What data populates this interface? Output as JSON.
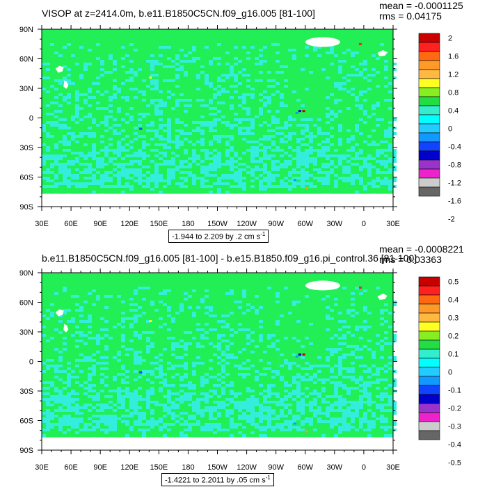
{
  "chart_data": [
    {
      "type": "heatmap",
      "title": "VISOP at z=2414.0m, b.e11.B1850C5CN.f09_g16.005 [81-100]",
      "stats": {
        "mean": "mean = -0.0001125",
        "rms": "rms = 0.04175"
      },
      "range_note": "-1.944 to 2.209 by .2 cm s",
      "range_unit_exp": "-1",
      "x_tick_labels": [
        "30E",
        "60E",
        "90E",
        "120E",
        "150E",
        "180",
        "150W",
        "120W",
        "90W",
        "60W",
        "30W",
        "0",
        "30E"
      ],
      "y_tick_labels": [
        "90N",
        "60N",
        "30N",
        "0",
        "30S",
        "60S",
        "90S"
      ],
      "xlim": [
        30,
        390
      ],
      "ylim": [
        -90,
        90
      ],
      "colorbar_labels": [
        "2",
        "1.6",
        "1.2",
        "0.8",
        "0.4",
        "0",
        "-0.4",
        "-0.8",
        "-1.2",
        "-1.6",
        "-2"
      ]
    },
    {
      "type": "heatmap",
      "title": "b.e11.B1850C5CN.f09_g16.005 [81-100] - b.e15.B1850.f09_g16.pi_control.36 [81-100]",
      "stats": {
        "mean": "mean = -0.0008221",
        "rms": "rms = 0.03363"
      },
      "range_note": "-1.4221 to 2.2011 by .05 cm s",
      "range_unit_exp": "-1",
      "x_tick_labels": [
        "30E",
        "60E",
        "90E",
        "120E",
        "150E",
        "180",
        "150W",
        "120W",
        "90W",
        "60W",
        "30W",
        "0",
        "30E"
      ],
      "y_tick_labels": [
        "90N",
        "60N",
        "30N",
        "0",
        "30S",
        "60S",
        "90S"
      ],
      "xlim": [
        30,
        390
      ],
      "ylim": [
        -90,
        90
      ],
      "colorbar_labels": [
        "0.5",
        "0.4",
        "0.3",
        "0.2",
        "0.1",
        "0",
        "-0.1",
        "-0.2",
        "-0.3",
        "-0.4",
        "-0.5"
      ]
    }
  ],
  "colors": {
    "base_green": "#22ee55",
    "cyan": "#33eedd",
    "colorbar": [
      "#c80000",
      "#ff2020",
      "#ff6a10",
      "#ff9a28",
      "#ffb840",
      "#ffff22",
      "#88ee22",
      "#22dd44",
      "#33eecc",
      "#00ffff",
      "#22ccff",
      "#1199ff",
      "#1144ff",
      "#0000cc",
      "#9933cc",
      "#ee22cc",
      "#cccccc",
      "#666666"
    ]
  }
}
